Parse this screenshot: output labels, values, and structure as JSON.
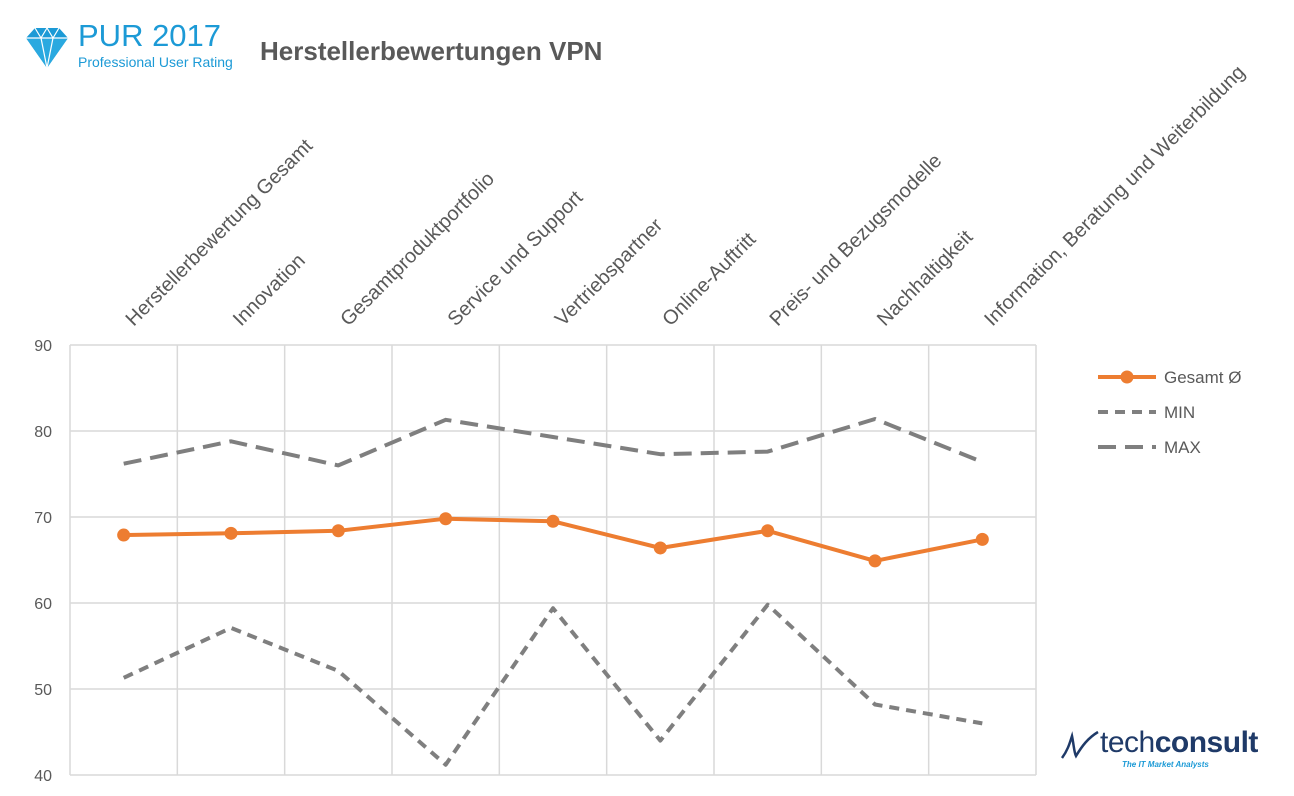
{
  "header": {
    "logo_title": "PUR 2017",
    "logo_subtitle": "Professional User Rating",
    "title": "Herstellerbewertungen VPN"
  },
  "footer": {
    "brand_light": "tech",
    "brand_bold": "consult",
    "tagline": "The IT Market Analysts"
  },
  "colors": {
    "accent": "#ed7d31",
    "min_max": "#7f7f7f",
    "grid": "#d9d9d9",
    "brand_blue": "#1c9ad6",
    "brand_navy": "#1f3a68"
  },
  "chart_data": {
    "type": "line",
    "categories": [
      "Herstellerbewertung Gesamt",
      "Innovation",
      "Gesamtproduktportfolio",
      "Service und Support",
      "Vertriebspartner",
      "Online-Auftritt",
      "Preis- und Bezugsmodelle",
      "Nachhaltigkeit",
      "Information, Beratung und Weiterbildung"
    ],
    "series": [
      {
        "name": "Gesamt Ø",
        "style": "solid-marker",
        "color": "#ed7d31",
        "values": [
          67.9,
          68.1,
          68.4,
          69.8,
          69.5,
          66.4,
          68.4,
          64.9,
          67.4
        ]
      },
      {
        "name": "MIN",
        "style": "short-dash",
        "color": "#7f7f7f",
        "values": [
          51.3,
          57.1,
          52.1,
          41.2,
          59.4,
          44.0,
          59.8,
          48.2,
          46.0
        ]
      },
      {
        "name": "MAX",
        "style": "long-dash",
        "color": "#7f7f7f",
        "values": [
          76.2,
          78.8,
          76.0,
          81.3,
          79.3,
          77.3,
          77.6,
          81.4,
          76.4
        ]
      }
    ],
    "y_ticks": [
      "40",
      "50",
      "60",
      "70",
      "80",
      "90"
    ],
    "ylim": [
      40,
      90
    ],
    "x_axis_position": "top",
    "grid": true,
    "legend": "right"
  }
}
